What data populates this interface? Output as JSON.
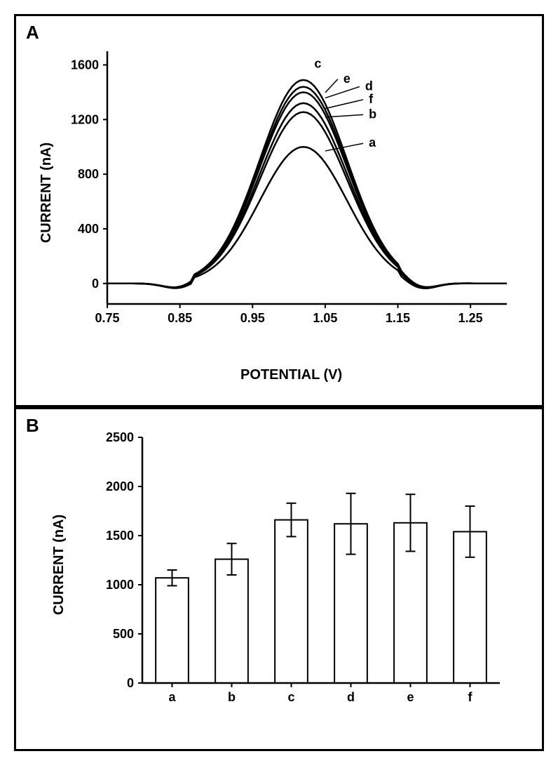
{
  "panelA": {
    "label": "A",
    "type": "line",
    "xlabel": "POTENTIAL (V)",
    "ylabel": "CURRENT (nA)",
    "xlim": [
      0.75,
      1.3
    ],
    "ylim": [
      -150,
      1700
    ],
    "xticks": [
      0.75,
      0.85,
      0.95,
      1.05,
      1.15,
      1.25
    ],
    "yticks": [
      0,
      400,
      800,
      1200,
      1600
    ],
    "label_fontsize": 20,
    "tick_fontsize": 18,
    "line_color": "#000000",
    "line_width": 2.5,
    "background_color": "#ffffff",
    "series": [
      {
        "name": "a",
        "peak": 1000,
        "peak_x": 1.02,
        "label_x": 1.11,
        "label_y": 1000
      },
      {
        "name": "b",
        "peak": 1255,
        "peak_x": 1.02,
        "label_x": 1.11,
        "label_y": 1210
      },
      {
        "name": "c",
        "peak": 1490,
        "peak_x": 1.02,
        "label_x": 1.035,
        "label_y": 1580
      },
      {
        "name": "d",
        "peak": 1400,
        "peak_x": 1.02,
        "label_x": 1.105,
        "label_y": 1415
      },
      {
        "name": "e",
        "peak": 1440,
        "peak_x": 1.02,
        "label_x": 1.075,
        "label_y": 1470
      },
      {
        "name": "f",
        "peak": 1320,
        "peak_x": 1.02,
        "label_x": 1.11,
        "label_y": 1320
      }
    ],
    "curve_x": [
      0.75,
      0.78,
      0.81,
      0.84,
      0.86,
      0.88,
      0.9,
      0.92,
      0.94,
      0.96,
      0.98,
      1.0,
      1.02,
      1.04,
      1.06,
      1.08,
      1.1,
      1.12,
      1.14,
      1.16,
      1.18,
      1.2,
      1.22,
      1.24,
      1.26,
      1.28,
      1.3
    ]
  },
  "panelB": {
    "label": "B",
    "type": "bar",
    "ylabel": "CURRENT (nA)",
    "categories": [
      "a",
      "b",
      "c",
      "d",
      "e",
      "f"
    ],
    "values": [
      1070,
      1260,
      1660,
      1620,
      1630,
      1540
    ],
    "errors": [
      80,
      160,
      170,
      310,
      290,
      260
    ],
    "ylim": [
      0,
      2500
    ],
    "yticks": [
      0,
      500,
      1000,
      1500,
      2000,
      2500
    ],
    "bar_fill": "#ffffff",
    "bar_stroke": "#000000",
    "bar_stroke_width": 2,
    "error_cap_width": 14,
    "label_fontsize": 20,
    "tick_fontsize": 18,
    "background_color": "#ffffff",
    "bar_width_ratio": 0.55
  }
}
